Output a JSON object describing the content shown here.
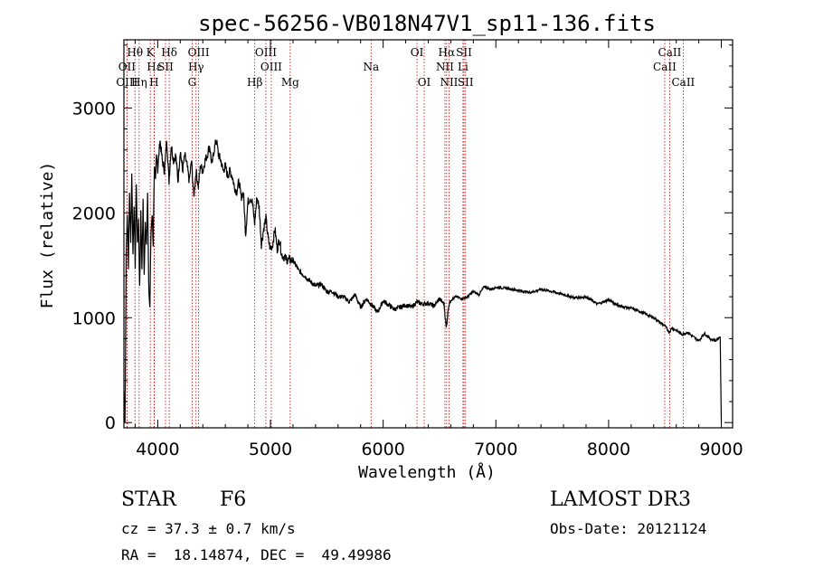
{
  "chart_data": {
    "type": "line",
    "title": "spec-56256-VB018N47V1_sp11-136.fits",
    "xlabel": "Wavelength (Å)",
    "ylabel": "Flux (relative)",
    "xlim": [
      3700,
      9100
    ],
    "ylim": [
      -50,
      3650
    ],
    "xticks": [
      4000,
      5000,
      6000,
      7000,
      8000,
      9000
    ],
    "yticks": [
      0,
      1000,
      2000,
      3000
    ],
    "series": [
      {
        "name": "flux",
        "x": [
          3700,
          3710,
          3720,
          3730,
          3740,
          3750,
          3760,
          3770,
          3780,
          3790,
          3800,
          3810,
          3820,
          3830,
          3840,
          3850,
          3860,
          3870,
          3880,
          3890,
          3900,
          3910,
          3920,
          3930,
          3940,
          3950,
          3960,
          3970,
          3980,
          3990,
          4000,
          4020,
          4040,
          4060,
          4080,
          4100,
          4120,
          4140,
          4160,
          4180,
          4200,
          4220,
          4240,
          4260,
          4280,
          4300,
          4320,
          4340,
          4360,
          4380,
          4400,
          4420,
          4440,
          4460,
          4480,
          4500,
          4520,
          4540,
          4560,
          4580,
          4600,
          4620,
          4640,
          4660,
          4680,
          4700,
          4720,
          4740,
          4760,
          4780,
          4800,
          4820,
          4840,
          4860,
          4880,
          4900,
          4920,
          4940,
          4960,
          4980,
          5000,
          5020,
          5040,
          5060,
          5080,
          5100,
          5150,
          5200,
          5250,
          5300,
          5350,
          5400,
          5450,
          5500,
          5550,
          5600,
          5650,
          5700,
          5750,
          5800,
          5850,
          5900,
          5950,
          6000,
          6050,
          6100,
          6150,
          6200,
          6250,
          6300,
          6350,
          6400,
          6450,
          6500,
          6540,
          6560,
          6580,
          6600,
          6650,
          6700,
          6750,
          6800,
          6850,
          6900,
          6950,
          7000,
          7100,
          7200,
          7300,
          7400,
          7500,
          7600,
          7700,
          7800,
          7900,
          8000,
          8100,
          8200,
          8300,
          8400,
          8450,
          8500,
          8540,
          8560,
          8600,
          8650,
          8700,
          8750,
          8800,
          8850,
          8900,
          8950,
          8990,
          9000
        ],
        "y": [
          300,
          0,
          1600,
          2000,
          1500,
          2200,
          1700,
          2400,
          1600,
          2100,
          1500,
          2300,
          1700,
          1900,
          1300,
          2000,
          1500,
          2100,
          1400,
          1900,
          1700,
          2200,
          1300,
          1100,
          1800,
          2000,
          1700,
          2400,
          2300,
          2600,
          2400,
          2700,
          2500,
          2400,
          2700,
          2300,
          2650,
          2500,
          2550,
          2300,
          2600,
          2400,
          2550,
          2450,
          2300,
          2500,
          2150,
          2400,
          2250,
          2450,
          2400,
          2500,
          2550,
          2650,
          2450,
          2600,
          2700,
          2550,
          2500,
          2400,
          2450,
          2350,
          2400,
          2350,
          2250,
          2200,
          2300,
          2150,
          2200,
          1800,
          2100,
          2150,
          2100,
          1900,
          2150,
          2050,
          1700,
          1850,
          1950,
          1750,
          1650,
          1700,
          1850,
          1650,
          1750,
          1600,
          1550,
          1550,
          1450,
          1400,
          1350,
          1300,
          1320,
          1250,
          1250,
          1200,
          1200,
          1150,
          1220,
          1100,
          1180,
          1120,
          1050,
          1160,
          1120,
          1080,
          1100,
          1120,
          1100,
          1150,
          1130,
          1140,
          1110,
          1180,
          1130,
          900,
          1110,
          1170,
          1200,
          1180,
          1200,
          1250,
          1220,
          1300,
          1270,
          1290,
          1280,
          1260,
          1240,
          1270,
          1250,
          1220,
          1190,
          1200,
          1130,
          1170,
          1110,
          1090,
          1050,
          1000,
          960,
          920,
          860,
          900,
          880,
          840,
          860,
          820,
          780,
          850,
          800,
          780,
          820,
          0
        ]
      }
    ],
    "spectral_lines": [
      {
        "label": "Hθ",
        "wl": 3798,
        "row": 1
      },
      {
        "label": "OII",
        "wl": 3727,
        "row": 2
      },
      {
        "label": "OIII",
        "wl": 3727,
        "row": 3
      },
      {
        "label": "Hη",
        "wl": 3835,
        "row": 3
      },
      {
        "label": "K",
        "wl": 3934,
        "row": 1
      },
      {
        "label": "Hε",
        "wl": 3970,
        "row": 2
      },
      {
        "label": "H",
        "wl": 3968,
        "row": 3
      },
      {
        "label": "SII",
        "wl": 4069,
        "row": 2
      },
      {
        "label": "Hδ",
        "wl": 4102,
        "row": 1
      },
      {
        "label": "OIII",
        "wl": 4363,
        "row": 1
      },
      {
        "label": "Hγ",
        "wl": 4340,
        "row": 2
      },
      {
        "label": "G",
        "wl": 4305,
        "row": 3
      },
      {
        "label": "Hβ",
        "wl": 4861,
        "row": 3
      },
      {
        "label": "OIII",
        "wl": 4959,
        "row": 1
      },
      {
        "label": "OIII",
        "wl": 5007,
        "row": 2
      },
      {
        "label": "Mg",
        "wl": 5175,
        "row": 3
      },
      {
        "label": "Na",
        "wl": 5893,
        "row": 2
      },
      {
        "label": "OI",
        "wl": 6300,
        "row": 1
      },
      {
        "label": "OI",
        "wl": 6364,
        "row": 3
      },
      {
        "label": "Hα",
        "wl": 6563,
        "row": 1
      },
      {
        "label": "NII",
        "wl": 6548,
        "row": 2
      },
      {
        "label": "NII",
        "wl": 6584,
        "row": 3
      },
      {
        "label": "SII",
        "wl": 6717,
        "row": 1
      },
      {
        "label": "Li",
        "wl": 6708,
        "row": 2
      },
      {
        "label": "SII",
        "wl": 6731,
        "row": 3
      },
      {
        "label": "CaII",
        "wl": 8542,
        "row": 1
      },
      {
        "label": "CaII",
        "wl": 8498,
        "row": 2
      },
      {
        "label": "CaII",
        "wl": 8662,
        "row": 3
      }
    ],
    "colors": {
      "line": "#000000",
      "marker": "#cc0000",
      "axes": "#000000"
    }
  },
  "info": {
    "class_label": "STAR",
    "subclass": "F6",
    "survey": "LAMOST DR3",
    "cz": "cz = 37.3 ± 0.7 km/s",
    "obs_date": "Obs-Date: 20121124",
    "radec": "RA =  18.14874, DEC =  49.49986"
  }
}
